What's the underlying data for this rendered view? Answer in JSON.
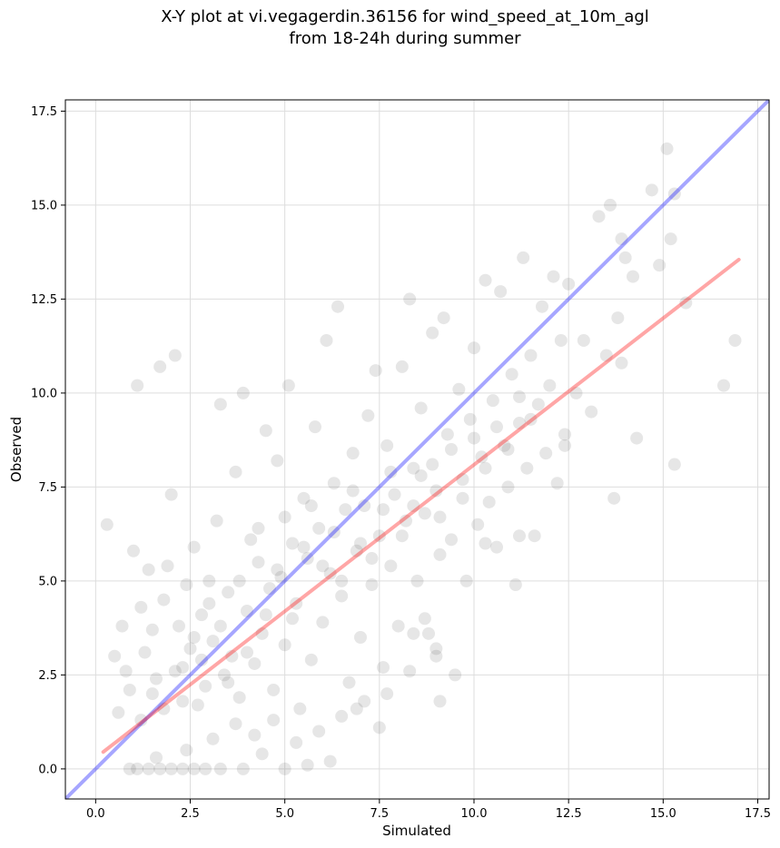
{
  "chart_data": {
    "type": "scatter",
    "title_lines": [
      "X-Y plot at vi.vegagerdin.36156 for wind_speed_at_10m_agl",
      "from 18-24h during summer"
    ],
    "xlabel": "Simulated",
    "ylabel": "Observed",
    "xlim": [
      -0.8,
      17.8
    ],
    "ylim": [
      -0.8,
      17.8
    ],
    "xticks": [
      0.0,
      2.5,
      5.0,
      7.5,
      10.0,
      12.5,
      15.0,
      17.5
    ],
    "yticks": [
      0.0,
      2.5,
      5.0,
      7.5,
      10.0,
      12.5,
      15.0,
      17.5
    ],
    "grid": true,
    "legend": false,
    "colors": {
      "points": "#333333",
      "identity_line": "#0000ff",
      "fit_line": "#ff0000"
    },
    "identity_line": {
      "x": [
        -0.8,
        17.8
      ],
      "y": [
        -0.8,
        17.8
      ]
    },
    "fit_line": {
      "x": [
        0.2,
        17.0
      ],
      "y": [
        0.45,
        13.55
      ]
    },
    "series": [
      {
        "values": [
          [
            0.3,
            6.5
          ],
          [
            0.5,
            3.0
          ],
          [
            0.6,
            1.5
          ],
          [
            0.7,
            3.8
          ],
          [
            0.8,
            2.6
          ],
          [
            0.9,
            2.1
          ],
          [
            1.0,
            5.8
          ],
          [
            1.1,
            10.2
          ],
          [
            1.2,
            4.3
          ],
          [
            1.3,
            3.1
          ],
          [
            1.4,
            5.3
          ],
          [
            1.5,
            3.7
          ],
          [
            1.6,
            2.4
          ],
          [
            1.7,
            10.7
          ],
          [
            1.8,
            4.5
          ],
          [
            1.9,
            5.4
          ],
          [
            2.0,
            7.3
          ],
          [
            2.1,
            11.0
          ],
          [
            2.2,
            3.8
          ],
          [
            2.3,
            2.7
          ],
          [
            2.4,
            4.9
          ],
          [
            2.5,
            3.2
          ],
          [
            2.6,
            5.9
          ],
          [
            2.7,
            1.7
          ],
          [
            2.8,
            4.1
          ],
          [
            2.9,
            2.2
          ],
          [
            3.0,
            5.0
          ],
          [
            3.1,
            3.4
          ],
          [
            3.2,
            6.6
          ],
          [
            3.3,
            9.7
          ],
          [
            3.4,
            2.5
          ],
          [
            3.5,
            4.7
          ],
          [
            3.6,
            3.0
          ],
          [
            3.7,
            7.9
          ],
          [
            3.8,
            1.9
          ],
          [
            3.9,
            10.0
          ],
          [
            4.0,
            4.2
          ],
          [
            4.1,
            6.1
          ],
          [
            4.2,
            2.8
          ],
          [
            4.3,
            5.5
          ],
          [
            4.4,
            3.6
          ],
          [
            4.5,
            9.0
          ],
          [
            4.6,
            4.8
          ],
          [
            4.7,
            2.1
          ],
          [
            4.8,
            8.2
          ],
          [
            4.9,
            5.1
          ],
          [
            5.0,
            3.3
          ],
          [
            5.1,
            10.2
          ],
          [
            5.2,
            6.0
          ],
          [
            5.3,
            4.4
          ],
          [
            5.4,
            1.6
          ],
          [
            5.5,
            7.2
          ],
          [
            5.6,
            5.6
          ],
          [
            5.7,
            2.9
          ],
          [
            5.8,
            9.1
          ],
          [
            5.9,
            6.4
          ],
          [
            6.0,
            3.9
          ],
          [
            6.1,
            11.4
          ],
          [
            6.2,
            5.2
          ],
          [
            6.3,
            7.6
          ],
          [
            6.4,
            12.3
          ],
          [
            6.5,
            4.6
          ],
          [
            6.6,
            6.9
          ],
          [
            6.7,
            2.3
          ],
          [
            6.8,
            8.4
          ],
          [
            6.9,
            5.8
          ],
          [
            7.0,
            3.5
          ],
          [
            7.1,
            7.0
          ],
          [
            7.2,
            9.4
          ],
          [
            7.3,
            4.9
          ],
          [
            7.4,
            10.6
          ],
          [
            7.5,
            6.2
          ],
          [
            7.6,
            2.7
          ],
          [
            7.7,
            8.6
          ],
          [
            7.8,
            5.4
          ],
          [
            7.9,
            7.3
          ],
          [
            8.0,
            3.8
          ],
          [
            8.1,
            10.7
          ],
          [
            8.2,
            6.6
          ],
          [
            8.3,
            12.5
          ],
          [
            8.4,
            8.0
          ],
          [
            8.5,
            5.0
          ],
          [
            8.6,
            9.6
          ],
          [
            8.7,
            6.8
          ],
          [
            8.8,
            3.6
          ],
          [
            8.9,
            11.6
          ],
          [
            9.0,
            7.4
          ],
          [
            9.1,
            5.7
          ],
          [
            9.2,
            12.0
          ],
          [
            9.3,
            8.9
          ],
          [
            9.4,
            6.1
          ],
          [
            9.5,
            2.5
          ],
          [
            9.6,
            10.1
          ],
          [
            9.7,
            7.7
          ],
          [
            9.8,
            5.0
          ],
          [
            9.9,
            9.3
          ],
          [
            10.0,
            11.2
          ],
          [
            10.1,
            6.5
          ],
          [
            10.2,
            8.3
          ],
          [
            10.3,
            13.0
          ],
          [
            10.4,
            7.1
          ],
          [
            10.5,
            9.8
          ],
          [
            10.6,
            5.9
          ],
          [
            10.7,
            12.7
          ],
          [
            10.8,
            8.6
          ],
          [
            10.9,
            7.5
          ],
          [
            11.0,
            10.5
          ],
          [
            11.1,
            4.9
          ],
          [
            11.2,
            9.2
          ],
          [
            11.3,
            13.6
          ],
          [
            11.4,
            8.0
          ],
          [
            11.5,
            11.0
          ],
          [
            11.6,
            6.2
          ],
          [
            11.7,
            9.7
          ],
          [
            11.8,
            12.3
          ],
          [
            11.9,
            8.4
          ],
          [
            12.0,
            10.2
          ],
          [
            12.1,
            13.1
          ],
          [
            12.2,
            7.6
          ],
          [
            12.3,
            11.4
          ],
          [
            12.4,
            8.9
          ],
          [
            12.5,
            12.9
          ],
          [
            12.7,
            10.0
          ],
          [
            12.9,
            11.4
          ],
          [
            13.1,
            9.5
          ],
          [
            13.3,
            14.7
          ],
          [
            13.5,
            11.0
          ],
          [
            13.6,
            15.0
          ],
          [
            13.7,
            7.2
          ],
          [
            13.8,
            12.0
          ],
          [
            13.9,
            14.1
          ],
          [
            14.0,
            13.6
          ],
          [
            14.2,
            13.1
          ],
          [
            14.3,
            8.8
          ],
          [
            14.7,
            15.4
          ],
          [
            14.9,
            13.4
          ],
          [
            15.1,
            16.5
          ],
          [
            15.2,
            14.1
          ],
          [
            15.3,
            8.1
          ],
          [
            15.6,
            12.4
          ],
          [
            16.6,
            10.2
          ],
          [
            16.9,
            11.4
          ],
          [
            15.3,
            15.3
          ],
          [
            13.9,
            10.8
          ],
          [
            12.4,
            8.6
          ],
          [
            11.2,
            6.2
          ],
          [
            10.3,
            6.0
          ],
          [
            9.0,
            3.2
          ],
          [
            9.1,
            1.8
          ],
          [
            8.4,
            3.6
          ],
          [
            7.5,
            1.1
          ],
          [
            6.9,
            1.6
          ],
          [
            6.2,
            0.2
          ],
          [
            5.6,
            0.1
          ],
          [
            5.0,
            0.0
          ],
          [
            4.4,
            0.4
          ],
          [
            3.9,
            0.0
          ],
          [
            3.3,
            0.0
          ],
          [
            2.9,
            0.0
          ],
          [
            2.6,
            0.0
          ],
          [
            2.3,
            0.0
          ],
          [
            2.0,
            0.0
          ],
          [
            1.7,
            0.0
          ],
          [
            1.4,
            0.0
          ],
          [
            1.1,
            0.0
          ],
          [
            0.9,
            0.0
          ],
          [
            1.6,
            0.3
          ],
          [
            2.4,
            0.5
          ],
          [
            3.1,
            0.8
          ],
          [
            3.7,
            1.2
          ],
          [
            4.2,
            0.9
          ],
          [
            4.7,
            1.3
          ],
          [
            5.3,
            0.7
          ],
          [
            5.9,
            1.0
          ],
          [
            6.5,
            1.4
          ],
          [
            7.1,
            1.8
          ],
          [
            7.7,
            2.0
          ],
          [
            8.3,
            2.6
          ],
          [
            9.0,
            3.0
          ],
          [
            8.7,
            4.0
          ],
          [
            1.2,
            1.3
          ],
          [
            1.5,
            2.0
          ],
          [
            1.8,
            1.6
          ],
          [
            2.1,
            2.6
          ],
          [
            2.3,
            1.8
          ],
          [
            2.6,
            3.5
          ],
          [
            2.8,
            2.9
          ],
          [
            3.0,
            4.4
          ],
          [
            3.3,
            3.8
          ],
          [
            3.5,
            2.3
          ],
          [
            3.8,
            5.0
          ],
          [
            4.0,
            3.1
          ],
          [
            4.3,
            6.4
          ],
          [
            4.5,
            4.1
          ],
          [
            4.8,
            5.3
          ],
          [
            5.0,
            6.7
          ],
          [
            5.2,
            4.0
          ],
          [
            5.5,
            5.9
          ],
          [
            5.7,
            7.0
          ],
          [
            6.0,
            5.4
          ],
          [
            6.3,
            6.3
          ],
          [
            6.5,
            5.0
          ],
          [
            6.8,
            7.4
          ],
          [
            7.0,
            6.0
          ],
          [
            7.3,
            5.6
          ],
          [
            7.6,
            6.9
          ],
          [
            7.8,
            7.9
          ],
          [
            8.1,
            6.2
          ],
          [
            8.4,
            7.0
          ],
          [
            8.6,
            7.8
          ],
          [
            8.9,
            8.1
          ],
          [
            9.1,
            6.7
          ],
          [
            9.4,
            8.5
          ],
          [
            9.7,
            7.2
          ],
          [
            10.0,
            8.8
          ],
          [
            10.3,
            8.0
          ],
          [
            10.6,
            9.1
          ],
          [
            10.9,
            8.5
          ],
          [
            11.2,
            9.9
          ],
          [
            11.5,
            9.3
          ]
        ]
      }
    ]
  }
}
